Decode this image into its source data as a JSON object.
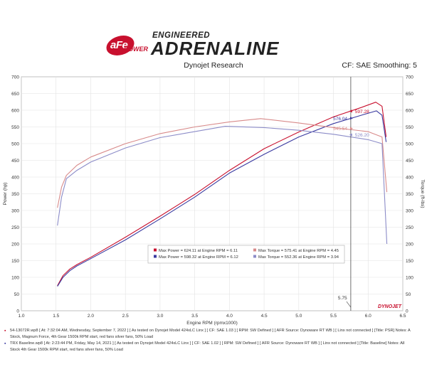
{
  "brand": {
    "logo_text": "aFe",
    "logo_sub": "POWER",
    "small": "ENGINEERED",
    "big": "ADRENALINE"
  },
  "subtitle": "Dynojet Research",
  "cf": "CF: SAE Smoothing: 5",
  "runs": [
    {
      "file": "54-13072R.wp8",
      "line1": "[ At: 7:32:04 AM, Wednesday, September 7, 2022 ] [ As tested on Dynojet Model 424xLC Linx ] [ CF: SAE 1.03 ] [ RPM: SW Defined ] [ AFR Source: Dynoware RT WB ] [ Linx not connected ] [Title: PSR]  Notes: A",
      "line2": "Stock, Magnum Force, 4th Gear 1500k RPM start, red fans silver fans, 50% Load",
      "color": "#c8102e"
    },
    {
      "file": "TRX Baseline.wp8",
      "line1": "[ At: 2:23:44 PM, Friday, May 14, 2021 ] [ As tested on Dynojet Model 424xLC Linx ] [ CF: SAE 1.02 ] [ RPM: SW Defined ] [ AFR Source: Dynoware RT WB ] [ Linx not connected ] [Title: Baseline]  Notes: All",
      "line2": "Stock 4th Gear 1500k RPM start, red fans silver fans, 50% Load",
      "color": "#3a3aa0"
    }
  ],
  "chart_data": {
    "type": "line",
    "xlabel": "Engine RPM (rpmx1000)",
    "ylabel": "Power (hp)",
    "y2label": "Torque (ft-lbs)",
    "xlim": [
      1.0,
      6.5
    ],
    "ylim": [
      0,
      700
    ],
    "x_ticks": [
      "1.0",
      "1.5",
      "2.0",
      "2.5",
      "3.0",
      "3.5",
      "4.0",
      "4.5",
      "5.0",
      "5.5",
      "6.0",
      "6.5"
    ],
    "y_ticks": [
      "0",
      "50",
      "100",
      "150",
      "200",
      "250",
      "300",
      "350",
      "400",
      "450",
      "500",
      "550",
      "600",
      "650",
      "700"
    ],
    "grid": true,
    "cursor": {
      "x": 5.75,
      "label": "5.75"
    },
    "series": [
      {
        "name": "Max Power",
        "color": "#c8102e",
        "kind": "power",
        "points": [
          [
            1.52,
            75
          ],
          [
            1.6,
            105
          ],
          [
            1.7,
            125
          ],
          [
            1.8,
            138
          ],
          [
            2.0,
            160
          ],
          [
            2.5,
            220
          ],
          [
            3.0,
            283
          ],
          [
            3.5,
            348
          ],
          [
            4.0,
            420
          ],
          [
            4.5,
            485
          ],
          [
            5.0,
            535
          ],
          [
            5.5,
            580
          ],
          [
            5.9,
            608
          ],
          [
            6.11,
            624
          ],
          [
            6.2,
            612
          ],
          [
            6.26,
            520
          ]
        ]
      },
      {
        "name": "Max Power",
        "color": "#3a3aa0",
        "kind": "power",
        "points": [
          [
            1.52,
            73
          ],
          [
            1.6,
            100
          ],
          [
            1.7,
            120
          ],
          [
            1.8,
            134
          ],
          [
            2.0,
            156
          ],
          [
            2.5,
            212
          ],
          [
            3.0,
            275
          ],
          [
            3.5,
            340
          ],
          [
            4.0,
            412
          ],
          [
            4.5,
            468
          ],
          [
            5.0,
            520
          ],
          [
            5.5,
            560
          ],
          [
            5.9,
            585
          ],
          [
            6.12,
            598
          ],
          [
            6.2,
            585
          ],
          [
            6.26,
            505
          ]
        ]
      },
      {
        "name": "Max Torque",
        "color": "#d88a8a",
        "kind": "torque",
        "points": [
          [
            1.52,
            308
          ],
          [
            1.58,
            370
          ],
          [
            1.65,
            405
          ],
          [
            1.8,
            435
          ],
          [
            2.0,
            460
          ],
          [
            2.5,
            500
          ],
          [
            3.0,
            530
          ],
          [
            3.5,
            550
          ],
          [
            4.0,
            565
          ],
          [
            4.45,
            575
          ],
          [
            5.0,
            562
          ],
          [
            5.5,
            548
          ],
          [
            6.0,
            536
          ],
          [
            6.2,
            520
          ],
          [
            6.27,
            355
          ]
        ]
      },
      {
        "name": "Max Torque",
        "color": "#8c8cc8",
        "kind": "torque",
        "points": [
          [
            1.52,
            255
          ],
          [
            1.58,
            340
          ],
          [
            1.65,
            395
          ],
          [
            1.8,
            420
          ],
          [
            2.0,
            445
          ],
          [
            2.5,
            487
          ],
          [
            3.0,
            518
          ],
          [
            3.5,
            536
          ],
          [
            3.94,
            552
          ],
          [
            4.5,
            548
          ],
          [
            5.0,
            540
          ],
          [
            5.5,
            528
          ],
          [
            6.0,
            512
          ],
          [
            6.2,
            500
          ],
          [
            6.27,
            200
          ]
        ]
      }
    ],
    "callouts": [
      {
        "text": "576.04",
        "x": 5.72,
        "y": 576.04,
        "color": "#3a3aa0"
      },
      {
        "text": "597.28",
        "x": 5.79,
        "y": 597.28,
        "color": "#c8102e"
      },
      {
        "text": "545.54",
        "x": 5.72,
        "y": 545.54,
        "color": "#d88a8a"
      },
      {
        "text": "526.20",
        "x": 5.79,
        "y": 526.2,
        "color": "#8c8cc8"
      }
    ],
    "legend": {
      "placement": "center",
      "entries": [
        {
          "text": "Max Power = 624.11 at Engine RPM = 6.11",
          "color": "#c8102e"
        },
        {
          "text": "Max Torque = 575.41 at Engine RPM = 4.45",
          "color": "#d88a8a"
        },
        {
          "text": "Max Power = 598.32 at Engine RPM = 6.12",
          "color": "#3a3aa0"
        },
        {
          "text": "Max Torque = 552.36 at Engine RPM = 3.94",
          "color": "#8c8cc8"
        }
      ]
    },
    "watermark": "DYNOJET"
  }
}
